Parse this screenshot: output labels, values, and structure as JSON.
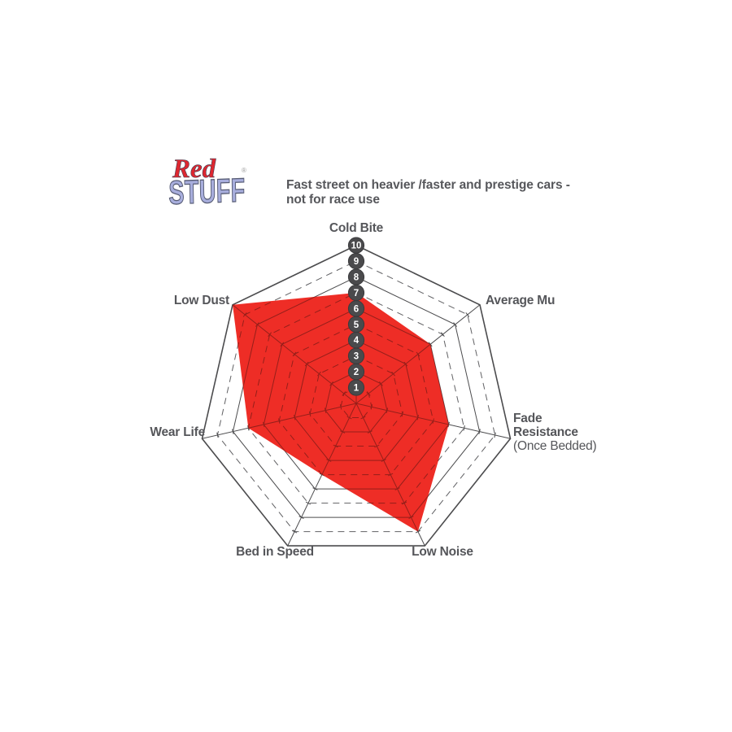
{
  "logo": {
    "line1": "Red",
    "line2": "STUFF",
    "registered": "®",
    "red_color": "#de2730",
    "lavender_color": "#a8aedd"
  },
  "title": {
    "line1": "Fast street on heavier /faster and prestige cars -",
    "line2": "not for race use",
    "color": "#56575b"
  },
  "axis_labels": {
    "cold_bite": "Cold Bite",
    "average_mu": "Average Mu",
    "fade_line1": "Fade",
    "fade_line2": "Resistance",
    "fade_line3": "(Once Bedded)",
    "low_noise": "Low Noise",
    "bed_in_speed": "Bed in Speed",
    "wear_life": "Wear Life",
    "low_dust": "Low Dust"
  },
  "chart_data": {
    "type": "radar",
    "title": "Fast street on heavier /faster and prestige cars - not for race use",
    "categories": [
      "Cold Bite",
      "Average Mu",
      "Fade Resistance (Once Bedded)",
      "Low Noise",
      "Bed in Speed",
      "Wear Life",
      "Low Dust"
    ],
    "values": [
      7,
      6,
      6,
      9,
      5,
      7,
      10
    ],
    "scale_min": 0,
    "scale_max": 10,
    "scale_ticks": [
      1,
      2,
      3,
      4,
      5,
      6,
      7,
      8,
      9,
      10
    ],
    "legend_position": "none",
    "grid": "concentric heptagons, even rings solid, odd rings dashed",
    "fill_color": "#ee2d26",
    "grid_solid_color": "#4c4c4e",
    "grid_dash_color": "#606063",
    "badge_color": "#4a4a4c",
    "badge_text_color": "#ffffff"
  }
}
